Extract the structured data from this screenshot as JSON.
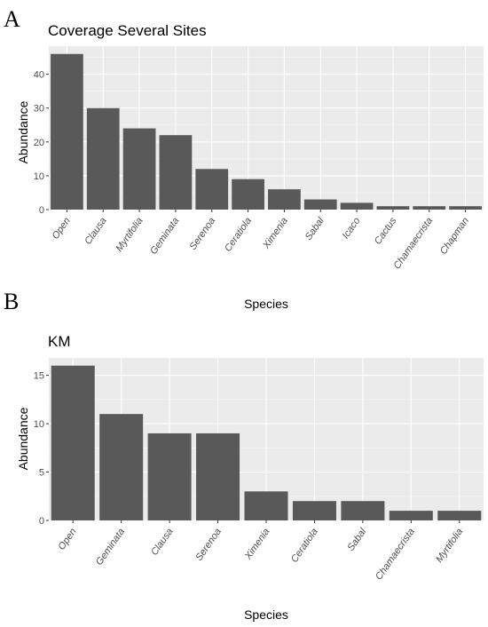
{
  "chart_data": [
    {
      "panel_label": "A",
      "type": "bar",
      "title": "Coverage Several Sites",
      "xlabel": "Species",
      "ylabel": "Abundance",
      "categories": [
        "Open",
        "Clausa",
        "Myrtifolia",
        "Geminata",
        "Serenoa",
        "Ceratiola",
        "Ximenia",
        "Sabal",
        "Icaco",
        "Cactus",
        "Chamaecrista",
        "Chapman"
      ],
      "values": [
        46,
        30,
        24,
        22,
        12,
        9,
        6,
        3,
        2,
        1,
        1,
        1
      ],
      "yticks": [
        0,
        10,
        20,
        30,
        40
      ],
      "ylim": [
        0,
        48.3
      ],
      "grid": true,
      "bar_color": "#595959",
      "panel_background": "#ebebeb"
    },
    {
      "panel_label": "B",
      "type": "bar",
      "title": "KM",
      "xlabel": "Species",
      "ylabel": "Abundance",
      "categories": [
        "Open",
        "Geminata",
        "Clausa",
        "Serenoa",
        "Ximenia",
        "Ceratiola",
        "Sabal",
        "Chamaecrista",
        "Myrtifolia"
      ],
      "values": [
        16,
        11,
        9,
        9,
        3,
        2,
        2,
        1,
        1
      ],
      "yticks": [
        0,
        5,
        10,
        15
      ],
      "ylim": [
        0,
        16.8
      ],
      "grid": true,
      "bar_color": "#595959",
      "panel_background": "#ebebeb"
    }
  ]
}
